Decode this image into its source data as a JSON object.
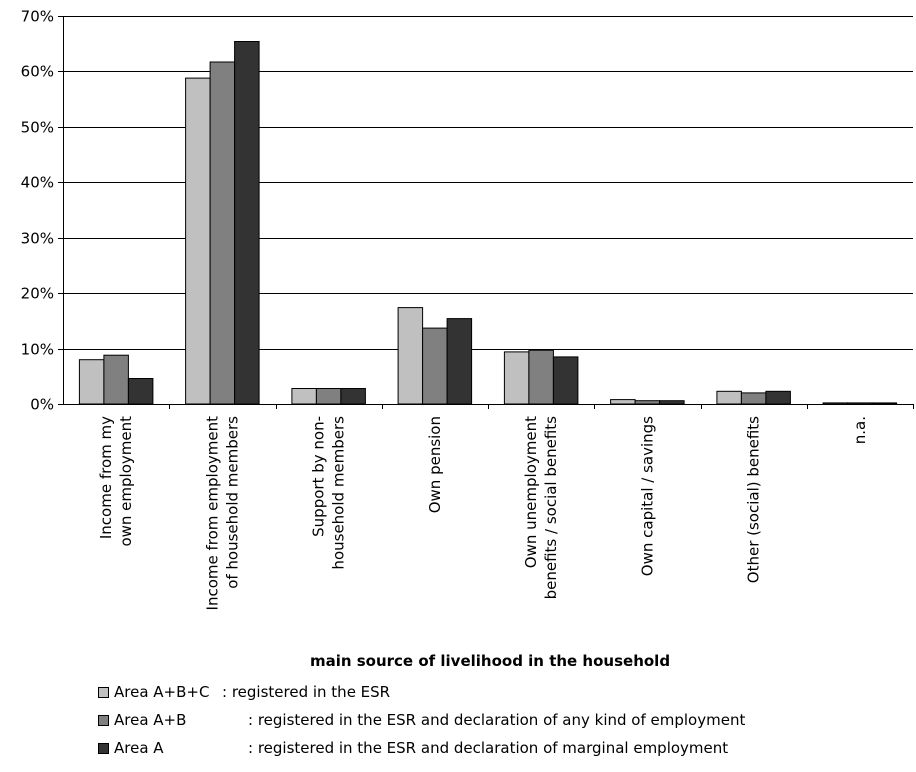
{
  "chart_data": {
    "type": "bar",
    "title": "",
    "xlabel": "main source of livelihood in the household",
    "ylabel": "",
    "ylim": [
      0,
      70
    ],
    "yticks": [
      "0%",
      "10%",
      "20%",
      "30%",
      "40%",
      "50%",
      "60%",
      "70%"
    ],
    "grid": true,
    "legend_position": "bottom",
    "categories": [
      [
        "Income from my",
        "own employment"
      ],
      [
        "Income from employment",
        "of household members"
      ],
      [
        "Support by non-",
        "household members"
      ],
      [
        "Own pension"
      ],
      [
        "Own unemployment",
        "benefits / social benefits"
      ],
      [
        "Own capital / savings"
      ],
      [
        "Other (social) benefits"
      ],
      [
        "n.a."
      ]
    ],
    "series": [
      {
        "name": "Area A+B+C",
        "description": ": registered in the ESR",
        "color": "#c0c0c0",
        "values": [
          8.0,
          58.8,
          2.8,
          17.4,
          9.4,
          0.8,
          2.3,
          0.2
        ]
      },
      {
        "name": "Area A+B",
        "description": ": registered in the ESR and declaration of any kind of employment",
        "color": "#808080",
        "values": [
          8.8,
          61.7,
          2.8,
          13.7,
          9.7,
          0.6,
          2.0,
          0.2
        ]
      },
      {
        "name": "Area A",
        "description": ": registered in the ESR and declaration of marginal employment",
        "color": "#333333",
        "values": [
          4.6,
          65.4,
          2.8,
          15.4,
          8.5,
          0.6,
          2.3,
          0.2
        ]
      }
    ]
  }
}
